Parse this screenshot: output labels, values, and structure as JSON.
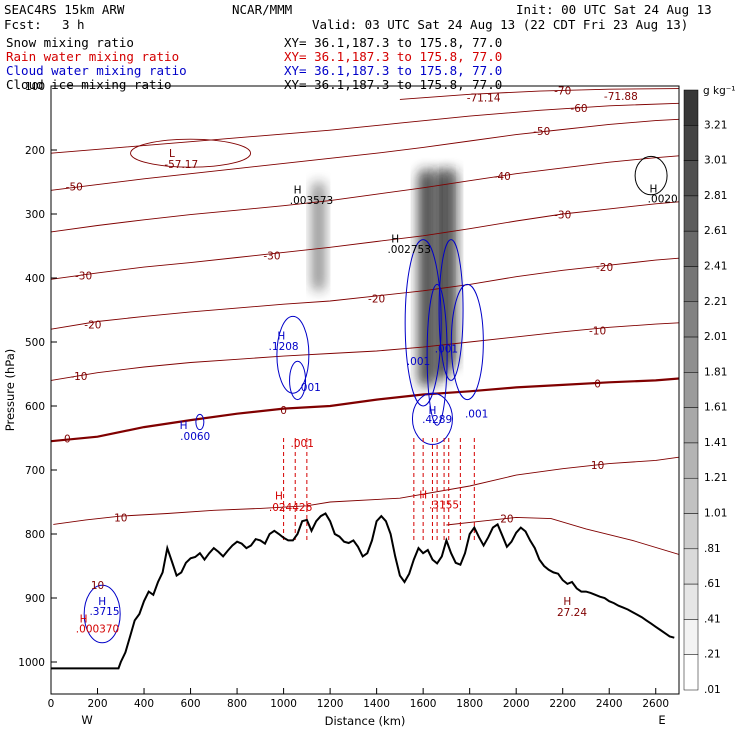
{
  "header": {
    "model": "SEAC4RS 15km ARW",
    "org": "NCAR/MMM",
    "init": "Init: 00 UTC Sat 24 Aug 13",
    "fcst_label": "Fcst:",
    "fcst_value": "3 h",
    "valid": "Valid: 03 UTC Sat 24 Aug 13 (22 CDT Fri 23 Aug 13)"
  },
  "fields": [
    {
      "label": "Snow mixing ratio",
      "xy": "XY=  36.1,187.3 to 175.8, 77.0",
      "color": "#000000"
    },
    {
      "label": "Rain water mixing ratio",
      "xy": "XY=  36.1,187.3 to 175.8, 77.0",
      "color": "#d40000"
    },
    {
      "label": "Cloud water mixing ratio",
      "xy": "XY=  36.1,187.3 to 175.8, 77.0",
      "color": "#0000c8"
    },
    {
      "label": "Cloud ice mixing ratio",
      "xy": "XY=  36.1,187.3 to 175.8, 77.0",
      "color": "#000000"
    }
  ],
  "colors": {
    "temperature": "#800000",
    "zero_isotherm": "#800000",
    "rain": "#d40000",
    "cloud_water": "#0000c8",
    "terrain": "#000000"
  },
  "chart_data": {
    "type": "contour",
    "xlabel": "Distance (km)",
    "ylabel": "Pressure (hPa)",
    "xlim": [
      0,
      2700
    ],
    "ylim": [
      1050,
      100
    ],
    "x_ticks": [
      0,
      200,
      400,
      600,
      800,
      1000,
      1200,
      1400,
      1600,
      1800,
      2000,
      2200,
      2400,
      2600
    ],
    "y_ticks": [
      1000,
      900,
      800,
      700,
      600,
      500,
      400,
      300,
      200,
      100
    ],
    "end_labels": {
      "left": "W",
      "right": "E"
    },
    "colorbar": {
      "unit": "g kg⁻¹",
      "labels": [
        "3.21",
        "3.01",
        "2.81",
        "2.61",
        "2.41",
        "2.21",
        "2.01",
        "1.81",
        "1.61",
        "1.41",
        "1.21",
        "1.01",
        ".81",
        ".61",
        ".41",
        ".21",
        ".01"
      ]
    },
    "terrain": {
      "x": [
        0,
        290,
        300,
        320,
        340,
        360,
        380,
        400,
        420,
        440,
        460,
        480,
        500,
        520,
        540,
        560,
        580,
        600,
        620,
        640,
        660,
        680,
        700,
        720,
        740,
        760,
        780,
        800,
        820,
        840,
        860,
        880,
        900,
        920,
        940,
        960,
        980,
        1000,
        1020,
        1040,
        1060,
        1080,
        1100,
        1120,
        1140,
        1160,
        1180,
        1200,
        1220,
        1240,
        1260,
        1280,
        1300,
        1320,
        1340,
        1360,
        1380,
        1400,
        1420,
        1440,
        1460,
        1480,
        1500,
        1520,
        1540,
        1560,
        1580,
        1600,
        1620,
        1640,
        1660,
        1680,
        1700,
        1720,
        1740,
        1760,
        1780,
        1800,
        1820,
        1840,
        1860,
        1880,
        1900,
        1920,
        1940,
        1960,
        1980,
        2000,
        2020,
        2040,
        2060,
        2080,
        2100,
        2120,
        2140,
        2160,
        2180,
        2200,
        2220,
        2240,
        2260,
        2280,
        2300,
        2320,
        2340,
        2360,
        2380,
        2400,
        2420,
        2440,
        2460,
        2480,
        2500,
        2520,
        2540,
        2560,
        2580,
        2600,
        2620,
        2640,
        2660,
        2680,
        2700
      ],
      "p": [
        1010,
        1010,
        1000,
        985,
        960,
        935,
        925,
        905,
        890,
        895,
        875,
        860,
        822,
        843,
        865,
        860,
        845,
        838,
        836,
        830,
        840,
        830,
        822,
        828,
        835,
        826,
        818,
        812,
        815,
        822,
        818,
        808,
        810,
        815,
        800,
        795,
        800,
        806,
        810,
        810,
        800,
        780,
        778,
        795,
        780,
        772,
        768,
        780,
        800,
        804,
        812,
        814,
        810,
        820,
        835,
        830,
        810,
        780,
        772,
        780,
        800,
        835,
        865,
        875,
        862,
        840,
        822,
        830,
        825,
        840,
        846,
        835,
        810,
        830,
        845,
        848,
        830,
        800,
        790,
        805,
        818,
        805,
        790,
        785,
        802,
        820,
        812,
        798,
        790,
        796,
        810,
        822,
        840,
        850,
        856,
        860,
        862,
        872,
        878,
        875,
        885,
        890,
        890,
        892,
        895,
        898,
        900,
        905,
        908,
        912,
        915,
        918,
        922,
        926,
        930,
        935,
        940,
        945,
        950,
        955,
        960,
        962
      ]
    },
    "isotherms": [
      {
        "level": "0",
        "x": [
          0,
          200,
          400,
          600,
          800,
          1000,
          1200,
          1400,
          1600,
          1800,
          2000,
          2200,
          2400,
          2600,
          2700
        ],
        "p": [
          655,
          648,
          633,
          622,
          612,
          604,
          600,
          590,
          582,
          577,
          571,
          567,
          563,
          560,
          557
        ],
        "bold": true
      },
      {
        "level": "10",
        "x": [
          10,
          150,
          300,
          500,
          700,
          900,
          1100,
          1200,
          1500,
          1800,
          2000,
          2200,
          2400,
          2600,
          2700
        ],
        "p": [
          785,
          778,
          772,
          768,
          763,
          760,
          756,
          750,
          744,
          725,
          708,
          698,
          690,
          685,
          680
        ]
      },
      {
        "level": "20",
        "x": [
          1700,
          1850,
          2000,
          2150,
          2300,
          2500,
          2700
        ],
        "p": [
          786,
          780,
          774,
          776,
          792,
          810,
          832
        ]
      },
      {
        "level": "-10",
        "x": [
          0,
          200,
          400,
          600,
          800,
          1000,
          1200,
          1400,
          1600,
          1800,
          2000,
          2200,
          2400,
          2600,
          2700
        ],
        "p": [
          560,
          548,
          539,
          532,
          527,
          522,
          518,
          514,
          508,
          500,
          492,
          484,
          477,
          472,
          470
        ]
      },
      {
        "level": "-20",
        "x": [
          0,
          200,
          400,
          600,
          800,
          1000,
          1200,
          1400,
          1600,
          1800,
          2000,
          2200,
          2400,
          2600,
          2700
        ],
        "p": [
          480,
          468,
          460,
          453,
          447,
          441,
          436,
          428,
          420,
          410,
          398,
          388,
          380,
          372,
          369
        ]
      },
      {
        "level": "-30",
        "x": [
          0,
          200,
          400,
          600,
          800,
          1000,
          1200,
          1400,
          1600,
          1800,
          2000,
          2200,
          2400,
          2600,
          2700
        ],
        "p": [
          402,
          392,
          383,
          376,
          368,
          360,
          352,
          343,
          334,
          323,
          311,
          300,
          292,
          284,
          281
        ]
      },
      {
        "level": "-40",
        "x": [
          0,
          200,
          400,
          600,
          800,
          1000,
          1200,
          1400,
          1600,
          1800,
          2000,
          2200,
          2400,
          2600,
          2700
        ],
        "p": [
          328,
          318,
          309,
          301,
          294,
          287,
          279,
          269,
          259,
          248,
          237,
          228,
          219,
          212,
          209
        ]
      },
      {
        "level": "-50",
        "x": [
          0,
          200,
          400,
          600,
          800,
          1000,
          1200,
          1400,
          1600,
          1800,
          2000,
          2200,
          2400,
          2600,
          2700
        ],
        "p": [
          263,
          254,
          245,
          237,
          229,
          221,
          213,
          205,
          196,
          186,
          176,
          168,
          160,
          154,
          152
        ]
      },
      {
        "level": "-60",
        "x": [
          0,
          300,
          600,
          900,
          1200,
          1500,
          1800,
          2100,
          2400,
          2700
        ],
        "p": [
          205,
          196,
          187,
          178,
          169,
          158,
          147,
          138,
          131,
          127
        ]
      },
      {
        "level": "-70",
        "x": [
          1500,
          1800,
          2100,
          2400,
          2700
        ],
        "p": [
          121,
          113,
          108,
          105,
          104
        ]
      }
    ],
    "temperature_labels": [
      {
        "text": "-50",
        "x": 100,
        "p": 257
      },
      {
        "text": "-30",
        "x": 140,
        "p": 396
      },
      {
        "text": "-20",
        "x": 180,
        "p": 473
      },
      {
        "text": "-10",
        "x": 120,
        "p": 553
      },
      {
        "text": "0",
        "x": 70,
        "p": 651
      },
      {
        "text": "0",
        "x": 1000,
        "p": 606
      },
      {
        "text": "10",
        "x": 300,
        "p": 774
      },
      {
        "text": "-30",
        "x": 950,
        "p": 365
      },
      {
        "text": "-20",
        "x": 1400,
        "p": 432
      },
      {
        "text": "-40",
        "x": 1940,
        "p": 241
      },
      {
        "text": "-50",
        "x": 2110,
        "p": 170
      },
      {
        "text": "-60",
        "x": 2270,
        "p": 134
      },
      {
        "text": "-70",
        "x": 2200,
        "p": 107
      },
      {
        "text": "-30",
        "x": 2200,
        "p": 301
      },
      {
        "text": "-20",
        "x": 2380,
        "p": 383
      },
      {
        "text": "-10",
        "x": 2350,
        "p": 482
      },
      {
        "text": "0",
        "x": 2350,
        "p": 565
      },
      {
        "text": "10",
        "x": 2350,
        "p": 692
      },
      {
        "text": "20",
        "x": 1960,
        "p": 776
      }
    ],
    "extrema_labels": [
      {
        "text": "L",
        "x": 520,
        "p": 205,
        "color": "#800000"
      },
      {
        "text": "-57.17",
        "x": 560,
        "p": 222,
        "color": "#800000"
      },
      {
        "text": "-71.14",
        "x": 1860,
        "p": 118,
        "color": "#800000"
      },
      {
        "text": "-71.88",
        "x": 2450,
        "p": 116,
        "color": "#800000"
      },
      {
        "text": "H",
        "x": 2590,
        "p": 260,
        "color": "#000000"
      },
      {
        "text": ".0020",
        "x": 2630,
        "p": 276,
        "color": "#000000"
      },
      {
        "text": "H",
        "x": 1060,
        "p": 262,
        "color": "#000000"
      },
      {
        "text": ".003573",
        "x": 1120,
        "p": 278,
        "color": "#000000"
      },
      {
        "text": "H",
        "x": 1480,
        "p": 338,
        "color": "#000000"
      },
      {
        "text": ".002753",
        "x": 1540,
        "p": 355,
        "color": "#000000"
      },
      {
        "text": "H",
        "x": 990,
        "p": 490,
        "color": "#0000c8"
      },
      {
        "text": ".1208",
        "x": 1000,
        "p": 506,
        "color": "#0000c8"
      },
      {
        "text": ".001",
        "x": 1110,
        "p": 570,
        "color": "#0000c8"
      },
      {
        "text": "H",
        "x": 570,
        "p": 630,
        "color": "#0000c8"
      },
      {
        "text": ".0060",
        "x": 620,
        "p": 647,
        "color": "#0000c8"
      },
      {
        "text": ".001",
        "x": 1080,
        "p": 658,
        "color": "#d40000"
      },
      {
        "text": "H",
        "x": 980,
        "p": 740,
        "color": "#d40000"
      },
      {
        "text": ".024426",
        "x": 1030,
        "p": 758,
        "color": "#d40000"
      },
      {
        "text": ".001",
        "x": 1580,
        "p": 530,
        "color": "#0000c8"
      },
      {
        "text": ".001",
        "x": 1700,
        "p": 510,
        "color": "#0000c8"
      },
      {
        "text": "H",
        "x": 1640,
        "p": 606,
        "color": "#0000c8"
      },
      {
        "text": ".4289",
        "x": 1660,
        "p": 620,
        "color": "#0000c8"
      },
      {
        "text": ".001",
        "x": 1830,
        "p": 612,
        "color": "#0000c8"
      },
      {
        "text": "H",
        "x": 1600,
        "p": 738,
        "color": "#d40000"
      },
      {
        "text": ".3155",
        "x": 1690,
        "p": 754,
        "color": "#d40000"
      },
      {
        "text": "H",
        "x": 220,
        "p": 905,
        "color": "#0000c8"
      },
      {
        "text": ".3715",
        "x": 230,
        "p": 920,
        "color": "#0000c8"
      },
      {
        "text": "H",
        "x": 140,
        "p": 932,
        "color": "#d40000"
      },
      {
        "text": ".000370",
        "x": 200,
        "p": 948,
        "color": "#d40000"
      },
      {
        "text": "10",
        "x": 200,
        "p": 880,
        "color": "#800000"
      },
      {
        "text": "H",
        "x": 2220,
        "p": 905,
        "color": "#800000"
      },
      {
        "text": "27.24",
        "x": 2240,
        "p": 922,
        "color": "#800000"
      }
    ],
    "cloud_ice_max": 0.0036,
    "cloud_water_max": 0.4289,
    "rain_max": 0.3155,
    "snow_max": 0.002
  }
}
